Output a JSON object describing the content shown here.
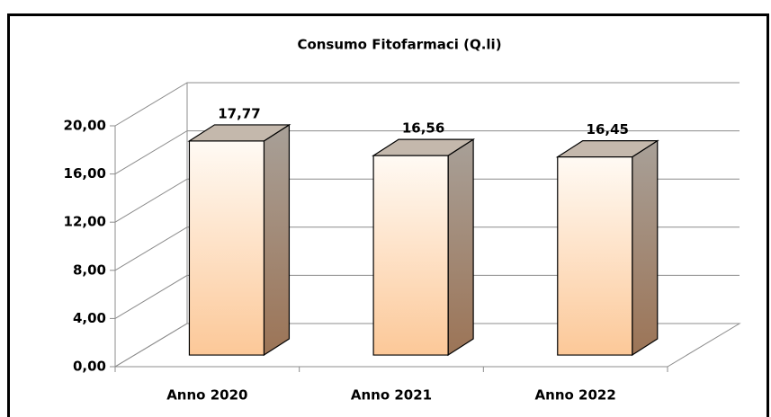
{
  "chart_data": {
    "type": "bar3d",
    "title": "Consumo Fitofarmaci (Q.li)",
    "categories": [
      "Anno 2020",
      "Anno 2021",
      "Anno 2022"
    ],
    "values": [
      17.77,
      16.56,
      16.45
    ],
    "value_labels": [
      "17,77",
      "16,56",
      "16,45"
    ],
    "ylim": [
      0,
      20
    ],
    "yticks": [
      {
        "value": 0,
        "label": "0,00"
      },
      {
        "value": 4,
        "label": "4,00"
      },
      {
        "value": 8,
        "label": "8,00"
      },
      {
        "value": 12,
        "label": "12,00"
      },
      {
        "value": 16,
        "label": "16,00"
      },
      {
        "value": 20,
        "label": "20,00"
      }
    ],
    "grid": true
  }
}
